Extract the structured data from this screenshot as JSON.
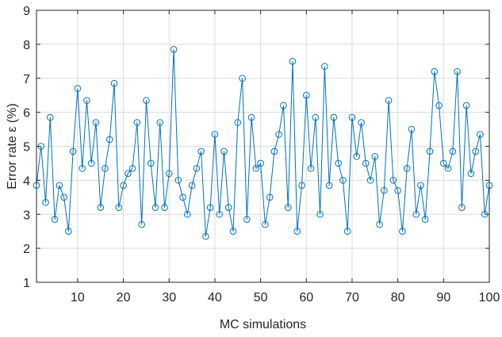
{
  "chart_data": {
    "type": "line",
    "title": "",
    "xlabel": "MC simulations",
    "ylabel": "Error rate ε (%)",
    "xlim": [
      1,
      100
    ],
    "ylim": [
      1,
      9
    ],
    "xticks": [
      10,
      20,
      30,
      40,
      50,
      60,
      70,
      80,
      90,
      100
    ],
    "yticks": [
      1,
      2,
      3,
      4,
      5,
      6,
      7,
      8,
      9
    ],
    "grid": true,
    "legend": "none",
    "marker": "circle",
    "colors": {
      "series": "#0072bd",
      "grid": "#dcdcdc",
      "axis": "#262626"
    },
    "series": [
      {
        "x": [
          1,
          2,
          3,
          4,
          5,
          6,
          7,
          8,
          9,
          10,
          11,
          12,
          13,
          14,
          15,
          16,
          17,
          18,
          19,
          20,
          21,
          22,
          23,
          24,
          25,
          26,
          27,
          28,
          29,
          30,
          31,
          32,
          33,
          34,
          35,
          36,
          37,
          38,
          39,
          40,
          41,
          42,
          43,
          44,
          45,
          46,
          47,
          48,
          49,
          50,
          51,
          52,
          53,
          54,
          55,
          56,
          57,
          58,
          59,
          60,
          61,
          62,
          63,
          64,
          65,
          66,
          67,
          68,
          69,
          70,
          71,
          72,
          73,
          74,
          75,
          76,
          77,
          78,
          79,
          80,
          81,
          82,
          83,
          84,
          85,
          86,
          87,
          88,
          89,
          90,
          91,
          92,
          93,
          94,
          95,
          96,
          97,
          98,
          99,
          100
        ],
        "values": [
          3.85,
          5.0,
          3.35,
          5.85,
          2.85,
          3.85,
          3.5,
          2.5,
          4.85,
          6.7,
          4.35,
          6.35,
          4.5,
          5.7,
          3.2,
          4.35,
          5.2,
          6.85,
          3.2,
          3.85,
          4.2,
          4.35,
          5.7,
          2.7,
          6.35,
          4.5,
          3.2,
          5.7,
          3.2,
          4.2,
          7.85,
          4.0,
          3.5,
          3.0,
          3.85,
          4.35,
          4.85,
          2.35,
          3.2,
          5.35,
          3.0,
          4.85,
          3.2,
          2.5,
          5.7,
          7.0,
          2.85,
          5.85,
          4.35,
          4.5,
          2.7,
          3.5,
          4.85,
          5.35,
          6.2,
          3.2,
          7.5,
          2.5,
          3.85,
          6.5,
          4.35,
          5.85,
          3.0,
          7.35,
          3.85,
          5.85,
          4.5,
          4.0,
          2.5,
          5.85,
          4.7,
          5.7,
          4.5,
          4.0,
          4.7,
          2.7,
          3.7,
          6.35,
          4.0,
          3.7,
          2.5,
          4.35,
          5.5,
          3.0,
          3.85,
          2.85,
          4.85,
          7.2,
          6.2,
          4.5,
          4.35,
          4.85,
          7.2,
          3.2,
          6.2,
          4.2,
          4.85,
          5.35,
          3.0,
          3.85
        ]
      }
    ]
  }
}
